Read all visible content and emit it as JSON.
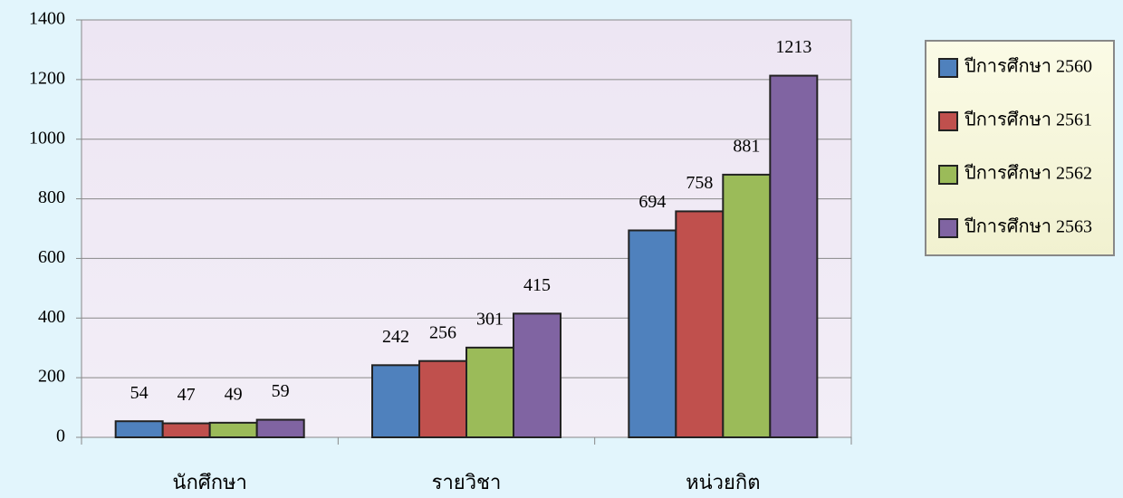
{
  "chart_data": {
    "type": "bar",
    "categories": [
      "นักศึกษา",
      "รายวิชา",
      "หน่วยกิต"
    ],
    "series": [
      {
        "name": "ปีการศึกษา 2560",
        "color": "#4f81bd",
        "values": [
          54,
          242,
          694
        ]
      },
      {
        "name": "ปีการศึกษา 2561",
        "color": "#c0504d",
        "values": [
          47,
          256,
          758
        ]
      },
      {
        "name": "ปีการศึกษา 2562",
        "color": "#9bbb59",
        "values": [
          49,
          301,
          881
        ]
      },
      {
        "name": "ปีการศึกษา 2563",
        "color": "#8064a2",
        "values": [
          59,
          415,
          1213
        ]
      }
    ],
    "ylim": [
      0,
      1400
    ],
    "yticks": [
      0,
      200,
      400,
      600,
      800,
      1000,
      1200,
      1400
    ],
    "grid": true,
    "legend": "right"
  }
}
